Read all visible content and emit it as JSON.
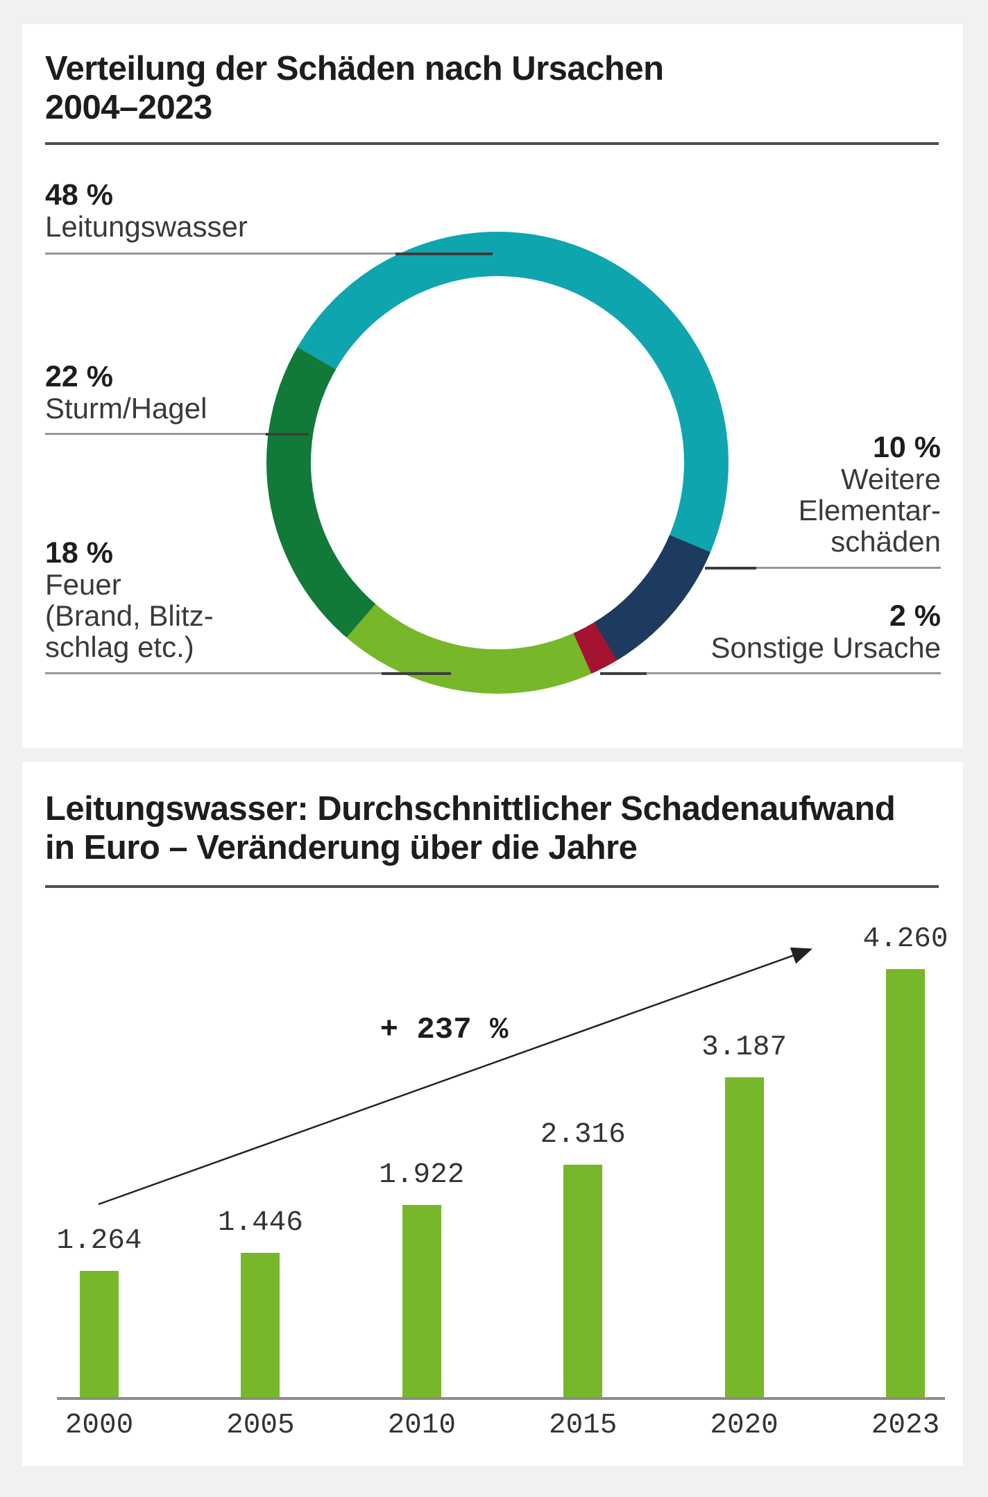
{
  "colors": {
    "background": "#f1f1f1",
    "card": "#ffffff",
    "title": "#1d1d1b",
    "label": "#3a3a3a",
    "number": "#333333",
    "leader_gray": "#979797",
    "leader_dark": "#3d3d3d",
    "rule": "#4f4f4f",
    "axis": "#8b8b8b",
    "arrow": "#222222"
  },
  "card1": {
    "title_lines": [
      "Verteilung der Schäden nach Ursachen",
      "2004–2023"
    ]
  },
  "card2": {
    "title_lines": [
      "Leitungswasser: Durchschnittlicher Schadenaufwand",
      "in Euro – Veränderung über die Jahre"
    ]
  },
  "chart_data": [
    {
      "type": "pie",
      "subtype": "donut",
      "title": "Verteilung der Schäden nach Ursachen 2004–2023",
      "unit": "%",
      "start_angle_deg": -60,
      "slices": [
        {
          "pct_label": "48 %",
          "value": 48,
          "label_lines": [
            "Leitungswasser"
          ],
          "color": "#0fa5ae"
        },
        {
          "pct_label": "10 %",
          "value": 10,
          "label_lines": [
            "Weitere",
            "Elementar-",
            "schäden"
          ],
          "color": "#1d3a5f"
        },
        {
          "pct_label": "2 %",
          "value": 2,
          "label_lines": [
            "Sonstige Ursache"
          ],
          "color": "#a41432"
        },
        {
          "pct_label": "18 %",
          "value": 18,
          "label_lines": [
            "Feuer",
            "(Brand, Blitz-",
            "schlag etc.)"
          ],
          "color": "#76b82a"
        },
        {
          "pct_label": "22 %",
          "value": 22,
          "label_lines": [
            "Sturm/Hagel"
          ],
          "color": "#117a39"
        }
      ]
    },
    {
      "type": "bar",
      "title": "Leitungswasser: Durchschnittlicher Schadenaufwand in Euro – Veränderung über die Jahre",
      "categories": [
        "2000",
        "2005",
        "2010",
        "2015",
        "2020",
        "2023"
      ],
      "values": [
        1264,
        1446,
        1922,
        2316,
        3187,
        4260
      ],
      "value_labels": [
        "1.264",
        "1.446",
        "1.922",
        "2.316",
        "3.187",
        "4.260"
      ],
      "annotation": "+ 237 %",
      "bar_color": "#76b82a",
      "ylabel": "Euro",
      "ylim": [
        0,
        4500
      ],
      "grid": false,
      "legend": false
    }
  ]
}
